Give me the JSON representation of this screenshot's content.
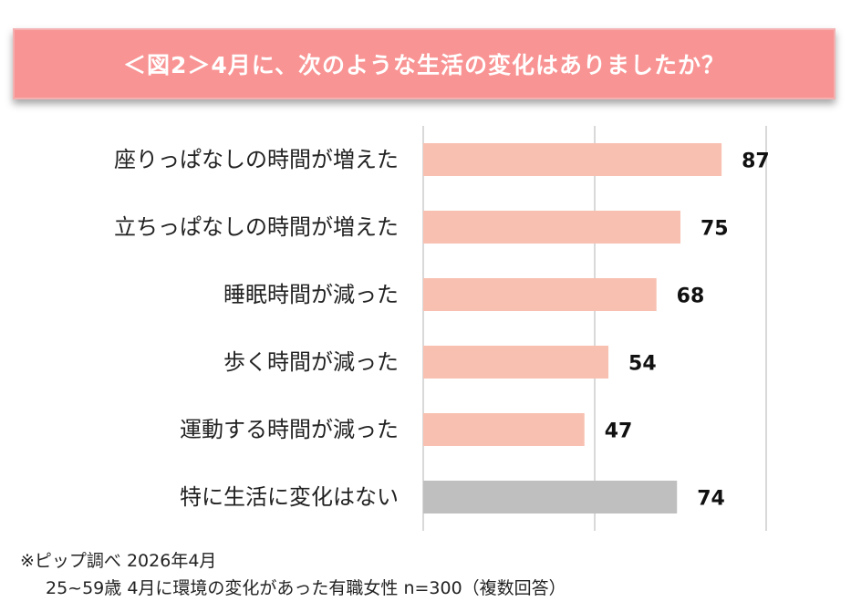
{
  "title": "＜図2＞4月に、次のような生活の変化はありましたか？",
  "chart_data": {
    "type": "bar",
    "orientation": "horizontal",
    "categories": [
      "座りっぱなしの時間が増えた",
      "立ちっぱなしの時間が増えた",
      "睡眠時間が減った",
      "歩く時間が減った",
      "運動する時間が減った",
      "特に生活に変化はない"
    ],
    "values": [
      87,
      75,
      68,
      54,
      47,
      74
    ],
    "bar_colors": [
      "#f8c0b0",
      "#f8c0b0",
      "#f8c0b0",
      "#f8c0b0",
      "#f8c0b0",
      "#bfbfbf"
    ],
    "xlim": [
      0,
      100
    ],
    "gridlines": [
      0,
      50,
      100
    ],
    "grid_color": "#d9d9d9"
  },
  "footnote": {
    "line1": "※ピップ調べ 2026年4月",
    "line2": "25~59歳  4月に環境の変化があった有職女性    n=300（複数回答）"
  }
}
